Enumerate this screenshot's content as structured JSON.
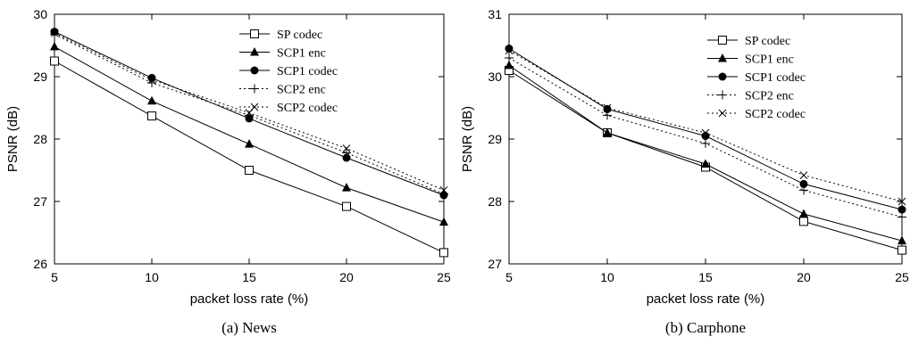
{
  "chart_data": [
    {
      "type": "line",
      "caption": "(a) News",
      "xlabel": "packet loss rate (%)",
      "ylabel": "PSNR (dB)",
      "x": [
        5,
        10,
        15,
        20,
        25
      ],
      "xlim": [
        5,
        25
      ],
      "ylim": [
        26,
        30
      ],
      "xticks": [
        "5",
        "10",
        "15",
        "20",
        "25"
      ],
      "yticks": [
        "26",
        "27",
        "28",
        "29",
        "30"
      ],
      "legend_position": "top-right",
      "series": [
        {
          "name": "SP codec",
          "marker": "square",
          "dash": "solid",
          "values": [
            29.25,
            28.37,
            27.5,
            26.92,
            26.18
          ]
        },
        {
          "name": "SCP1 enc",
          "marker": "triangle",
          "dash": "solid",
          "values": [
            29.48,
            28.61,
            27.92,
            27.22,
            26.67
          ]
        },
        {
          "name": "SCP1 codec",
          "marker": "circle",
          "dash": "solid",
          "values": [
            29.72,
            28.98,
            28.33,
            27.7,
            27.1
          ]
        },
        {
          "name": "SCP2 enc",
          "marker": "plus",
          "dash": "dotted",
          "values": [
            29.68,
            28.9,
            28.38,
            27.78,
            27.12
          ]
        },
        {
          "name": "SCP2 codec",
          "marker": "cross",
          "dash": "dotted",
          "values": [
            29.7,
            28.95,
            28.42,
            27.85,
            27.18
          ]
        }
      ]
    },
    {
      "type": "line",
      "caption": "(b) Carphone",
      "xlabel": "packet loss rate (%)",
      "ylabel": "PSNR (dB)",
      "x": [
        5,
        10,
        15,
        20,
        25
      ],
      "xlim": [
        5,
        25
      ],
      "ylim": [
        27,
        31
      ],
      "xticks": [
        "5",
        "10",
        "15",
        "20",
        "25"
      ],
      "yticks": [
        "27",
        "28",
        "29",
        "30",
        "31"
      ],
      "legend_position": "top-right",
      "series": [
        {
          "name": "SP codec",
          "marker": "square",
          "dash": "solid",
          "values": [
            30.1,
            29.1,
            28.55,
            27.68,
            27.22
          ]
        },
        {
          "name": "SCP1 enc",
          "marker": "triangle",
          "dash": "solid",
          "values": [
            30.18,
            29.1,
            28.6,
            27.8,
            27.37
          ]
        },
        {
          "name": "SCP1 codec",
          "marker": "circle",
          "dash": "solid",
          "values": [
            30.45,
            29.48,
            29.05,
            28.28,
            27.87
          ]
        },
        {
          "name": "SCP2 enc",
          "marker": "plus",
          "dash": "dotted",
          "values": [
            30.3,
            29.38,
            28.93,
            28.18,
            27.75
          ]
        },
        {
          "name": "SCP2 codec",
          "marker": "cross",
          "dash": "dotted",
          "values": [
            30.42,
            29.5,
            29.1,
            28.42,
            28.0
          ]
        }
      ]
    }
  ]
}
